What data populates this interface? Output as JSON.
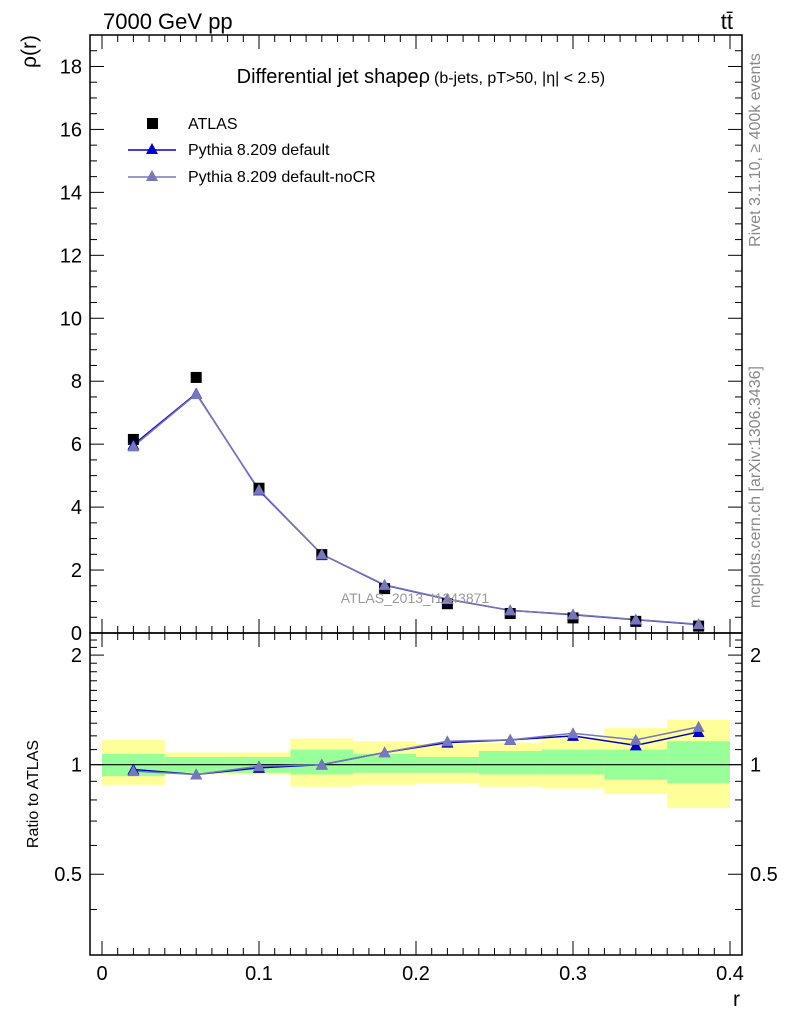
{
  "header": {
    "energy_label": "7000 GeV pp",
    "process_label": "tt̄"
  },
  "side_labels": {
    "rivet": "Rivet 3.1.10, ≥ 400k events",
    "source": "mcplots.cern.ch [arXiv:1306.3436]"
  },
  "colors": {
    "data": "#000000",
    "default": "#0000cc",
    "nocr": "#7777bb",
    "band_inner": "#99ff99",
    "band_outer": "#ffff99"
  },
  "chart_data": [
    {
      "type": "line",
      "title": "Differential jet shapeρ",
      "subtitle": "(b-jets, pT>50, |η| < 2.5)",
      "ylabel": "ρ(r)",
      "xlabel": "",
      "watermark": "ATLAS_2013_I1243871",
      "ylim": [
        0,
        19
      ],
      "xlim": [
        0,
        0.4
      ],
      "yticks": [
        0,
        2,
        4,
        6,
        8,
        10,
        12,
        14,
        16,
        18
      ],
      "x": [
        0.02,
        0.06,
        0.1,
        0.14,
        0.18,
        0.22,
        0.26,
        0.3,
        0.34,
        0.38
      ],
      "legend_position": "top-left",
      "series": [
        {
          "name": "ATLAS",
          "marker": "square",
          "values": [
            6.15,
            8.12,
            4.6,
            2.49,
            1.41,
            0.93,
            0.62,
            0.48,
            0.37,
            0.22
          ]
        },
        {
          "name": "Pythia 8.209 default",
          "marker": "triangle",
          "values": [
            5.98,
            7.61,
            4.53,
            2.5,
            1.52,
            1.07,
            0.72,
            0.58,
            0.42,
            0.27
          ]
        },
        {
          "name": "Pythia 8.209 default-noCR",
          "marker": "triangle",
          "values": [
            5.93,
            7.59,
            4.55,
            2.5,
            1.53,
            1.08,
            0.72,
            0.59,
            0.43,
            0.28
          ]
        }
      ]
    },
    {
      "type": "line",
      "ylabel": "Ratio to ATLAS",
      "xlabel": "r",
      "ylim": [
        0.3,
        2.3
      ],
      "xlim": [
        0,
        0.4
      ],
      "yticks": [
        0.5,
        1,
        2
      ],
      "xticks": [
        0,
        0.1,
        0.2,
        0.3,
        0.4
      ],
      "x": [
        0.02,
        0.06,
        0.1,
        0.14,
        0.18,
        0.22,
        0.26,
        0.3,
        0.34,
        0.38
      ],
      "bin_edges": [
        0,
        0.04,
        0.08,
        0.12,
        0.16,
        0.2,
        0.24,
        0.28,
        0.32,
        0.36,
        0.4
      ],
      "uncertainty_inner": [
        [
          0.93,
          1.07
        ],
        [
          0.95,
          1.05
        ],
        [
          0.95,
          1.05
        ],
        [
          0.94,
          1.1
        ],
        [
          0.95,
          1.07
        ],
        [
          0.95,
          1.05
        ],
        [
          0.94,
          1.09
        ],
        [
          0.94,
          1.1
        ],
        [
          0.91,
          1.1
        ],
        [
          0.89,
          1.16
        ]
      ],
      "uncertainty_outer": [
        [
          0.88,
          1.17
        ],
        [
          0.94,
          1.08
        ],
        [
          0.94,
          1.08
        ],
        [
          0.87,
          1.18
        ],
        [
          0.88,
          1.16
        ],
        [
          0.89,
          1.14
        ],
        [
          0.87,
          1.15
        ],
        [
          0.86,
          1.19
        ],
        [
          0.83,
          1.26
        ],
        [
          0.76,
          1.33
        ]
      ],
      "series": [
        {
          "name": "Pythia 8.209 default",
          "marker": "triangle",
          "values": [
            0.97,
            0.94,
            0.98,
            1.0,
            1.08,
            1.15,
            1.17,
            1.2,
            1.13,
            1.23
          ]
        },
        {
          "name": "Pythia 8.209 default-noCR",
          "marker": "triangle",
          "values": [
            0.96,
            0.94,
            0.99,
            1.0,
            1.08,
            1.16,
            1.17,
            1.22,
            1.17,
            1.27
          ]
        }
      ]
    }
  ]
}
